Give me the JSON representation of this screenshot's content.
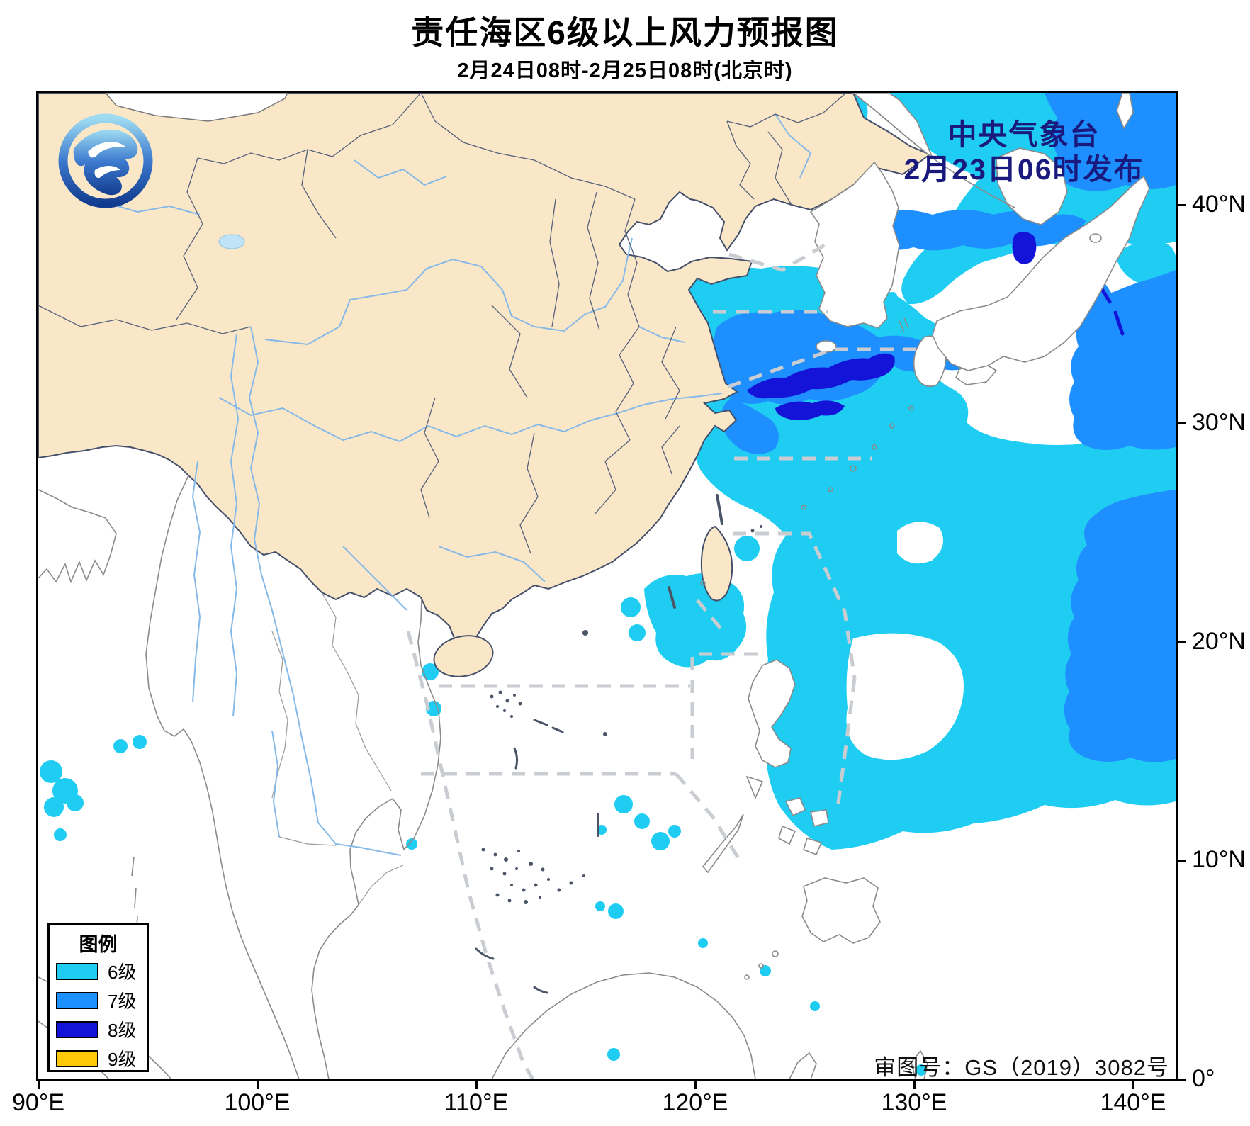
{
  "title": "责任海区6级以上风力预报图",
  "subtitle": "2月24日08时-2月25日08时(北京时)",
  "issuer": {
    "line1": "中央气象台",
    "line2": "2月23日06时发布"
  },
  "approval": "审图号：GS（2019）3082号",
  "legend": {
    "title": "图例",
    "items": [
      {
        "label": "6级",
        "color": "#1FCDF2"
      },
      {
        "label": "7级",
        "color": "#1E8FFF"
      },
      {
        "label": "8级",
        "color": "#1414D8"
      },
      {
        "label": "9级",
        "color": "#FFC808"
      }
    ]
  },
  "axes": {
    "x_ticks": [
      "90°E",
      "100°E",
      "110°E",
      "120°E",
      "130°E",
      "140°E"
    ],
    "y_ticks": [
      "40°N",
      "30°N",
      "20°N",
      "10°N",
      "0°"
    ]
  },
  "map": {
    "colors": {
      "land": "#FAE7C8",
      "sea": "#FFFFFF",
      "level6": "#1FCDF2",
      "level7": "#1E8FFF",
      "level8": "#1414D8",
      "level9": "#FFC808",
      "boundary_dash": "#C9CDD1",
      "coast_china": "#44506B",
      "coast_foreign": "#8A8A8A",
      "river": "#85B9E8",
      "issuer_text": "#1A1A7E",
      "lake": "#BFE3F7"
    }
  }
}
